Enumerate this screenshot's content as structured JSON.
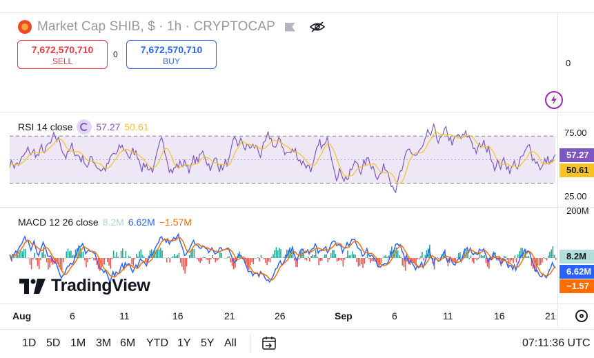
{
  "header": {
    "title": "Market Cap SHIB, $ · 1h · CRYPTOCAP",
    "sell_price": "7,672,570,710",
    "sell_label": "SELL",
    "spread": "0",
    "buy_price": "7,672,570,710",
    "buy_label": "BUY",
    "icons": [
      "shib-coin-icon",
      "flag-icon",
      "eye-slash-icon",
      "lightning-icon"
    ]
  },
  "price_axis": {
    "zero_label": "0"
  },
  "rsi": {
    "label": "RSI 14 close",
    "value": "57.27",
    "ma_value": "50.61",
    "axis_labels": [
      "75.00",
      "25.00"
    ],
    "tag_value": "57.27",
    "tag_ma_value": "50.61",
    "line_color": "#7e57c2",
    "ma_color": "#f7c325",
    "band_color": "#ede7f6",
    "upper_band": 70,
    "lower_band": 30,
    "ylim": [
      10,
      90
    ]
  },
  "macd": {
    "label": "MACD 12 26 close",
    "histogram": "8.2M",
    "macd_value": "6.62M",
    "signal_value": "−1.57M",
    "axis_label": "200M",
    "tag_hist": "8.2M",
    "tag_macd": "6.62M",
    "tag_signal": "−1.57",
    "macd_color": "#2962ff",
    "signal_color": "#ff6d00",
    "hist_pos_color": "#26a69a",
    "hist_neg_color": "#ef5350"
  },
  "watermark": {
    "text": "TradingView"
  },
  "time_axis": {
    "labels": [
      "Aug",
      "6",
      "11",
      "16",
      "21",
      "26",
      "Sep",
      "6",
      "11",
      "16",
      "21"
    ]
  },
  "toolbar": {
    "ranges": [
      "1D",
      "5D",
      "1M",
      "3M",
      "6M",
      "YTD",
      "1Y",
      "5Y",
      "All"
    ],
    "clock": "07:11:36 UTC"
  }
}
